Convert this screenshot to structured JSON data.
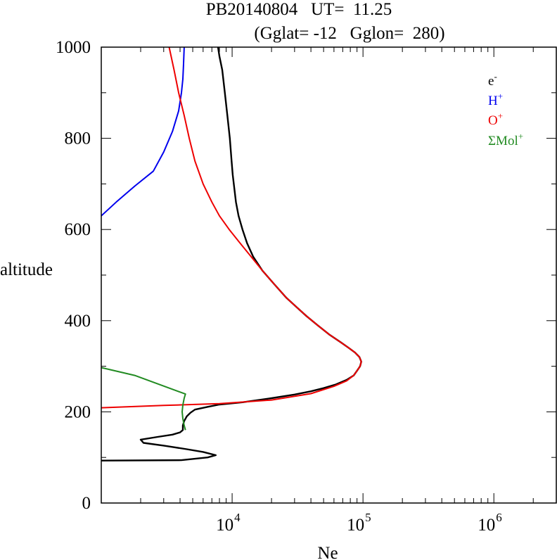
{
  "chart_data": {
    "type": "line",
    "title": "PB20140804   UT=  11.25",
    "subtitle": "(Gglat= -12   Gglon=  280)",
    "xlabel": "Ne",
    "ylabel": "altitude",
    "x_scale": "log",
    "xlim": [
      1000,
      3000000
    ],
    "ylim": [
      0,
      1000
    ],
    "x_ticks": [
      {
        "value": 10000,
        "base": "10",
        "exp": "4"
      },
      {
        "value": 100000,
        "base": "10",
        "exp": "5"
      },
      {
        "value": 1000000,
        "base": "10",
        "exp": "6"
      }
    ],
    "y_ticks": [
      0,
      200,
      400,
      600,
      800,
      1000
    ],
    "legend_position": "top-right",
    "series": [
      {
        "name": "e",
        "sup": "-",
        "color": "#000000",
        "points": [
          [
            1000,
            93
          ],
          [
            4100,
            94
          ],
          [
            6500,
            100
          ],
          [
            7500,
            105
          ],
          [
            6000,
            112
          ],
          [
            4500,
            118
          ],
          [
            3000,
            126
          ],
          [
            2100,
            132
          ],
          [
            2000,
            139
          ],
          [
            2700,
            145
          ],
          [
            3500,
            150
          ],
          [
            4000,
            155
          ],
          [
            4200,
            160
          ],
          [
            4200,
            170
          ],
          [
            4300,
            180
          ],
          [
            4500,
            190
          ],
          [
            4800,
            198
          ],
          [
            5200,
            205
          ],
          [
            6500,
            211
          ],
          [
            8000,
            216
          ],
          [
            12000,
            221
          ],
          [
            20000,
            230
          ],
          [
            30000,
            238
          ],
          [
            40000,
            245
          ],
          [
            50000,
            252
          ],
          [
            62000,
            260
          ],
          [
            75000,
            270
          ],
          [
            85000,
            280
          ],
          [
            90000,
            290
          ],
          [
            95000,
            300
          ],
          [
            97000,
            310
          ],
          [
            94000,
            320
          ],
          [
            87000,
            330
          ],
          [
            78000,
            340
          ],
          [
            68000,
            352
          ],
          [
            55000,
            370
          ],
          [
            45000,
            390
          ],
          [
            37000,
            410
          ],
          [
            31000,
            430
          ],
          [
            26000,
            450
          ],
          [
            21000,
            480
          ],
          [
            17000,
            510
          ],
          [
            14500,
            540
          ],
          [
            13000,
            570
          ],
          [
            12000,
            600
          ],
          [
            11200,
            630
          ],
          [
            10700,
            660
          ],
          [
            10400,
            690
          ],
          [
            10100,
            720
          ],
          [
            9900,
            750
          ],
          [
            9600,
            800
          ],
          [
            9200,
            850
          ],
          [
            8800,
            900
          ],
          [
            8400,
            950
          ],
          [
            8000,
            980
          ],
          [
            7800,
            1000
          ]
        ]
      },
      {
        "name": "H",
        "sup": "+",
        "color": "#0000ee",
        "points": [
          [
            1000,
            630
          ],
          [
            1300,
            660
          ],
          [
            1800,
            695
          ],
          [
            2500,
            728
          ],
          [
            3000,
            770
          ],
          [
            3500,
            815
          ],
          [
            3900,
            860
          ],
          [
            4100,
            900
          ],
          [
            4200,
            930
          ],
          [
            4250,
            960
          ],
          [
            4300,
            1000
          ]
        ]
      },
      {
        "name": "O",
        "sup": "+",
        "color": "#ee0000",
        "points": [
          [
            1000,
            209
          ],
          [
            3000,
            214
          ],
          [
            8000,
            218
          ],
          [
            20000,
            226
          ],
          [
            40000,
            240
          ],
          [
            60000,
            256
          ],
          [
            75000,
            268
          ],
          [
            85000,
            280
          ],
          [
            90000,
            290
          ],
          [
            95000,
            300
          ],
          [
            97000,
            310
          ],
          [
            94000,
            320
          ],
          [
            87000,
            330
          ],
          [
            78000,
            340
          ],
          [
            68000,
            352
          ],
          [
            55000,
            370
          ],
          [
            45000,
            390
          ],
          [
            37000,
            410
          ],
          [
            31000,
            430
          ],
          [
            26000,
            450
          ],
          [
            21000,
            480
          ],
          [
            17000,
            510
          ],
          [
            14000,
            540
          ],
          [
            11500,
            570
          ],
          [
            9500,
            600
          ],
          [
            8000,
            630
          ],
          [
            7000,
            660
          ],
          [
            6000,
            700
          ],
          [
            5200,
            750
          ],
          [
            4700,
            800
          ],
          [
            4300,
            850
          ],
          [
            3900,
            900
          ],
          [
            3600,
            950
          ],
          [
            3300,
            1000
          ]
        ]
      },
      {
        "name": "ΣMol",
        "sup": "+",
        "color": "#228b22",
        "points": [
          [
            1000,
            297
          ],
          [
            1800,
            280
          ],
          [
            4400,
            239
          ],
          [
            4300,
            230
          ],
          [
            4200,
            215
          ],
          [
            4150,
            200
          ],
          [
            4200,
            185
          ],
          [
            4300,
            170
          ],
          [
            4400,
            160
          ]
        ]
      }
    ]
  }
}
